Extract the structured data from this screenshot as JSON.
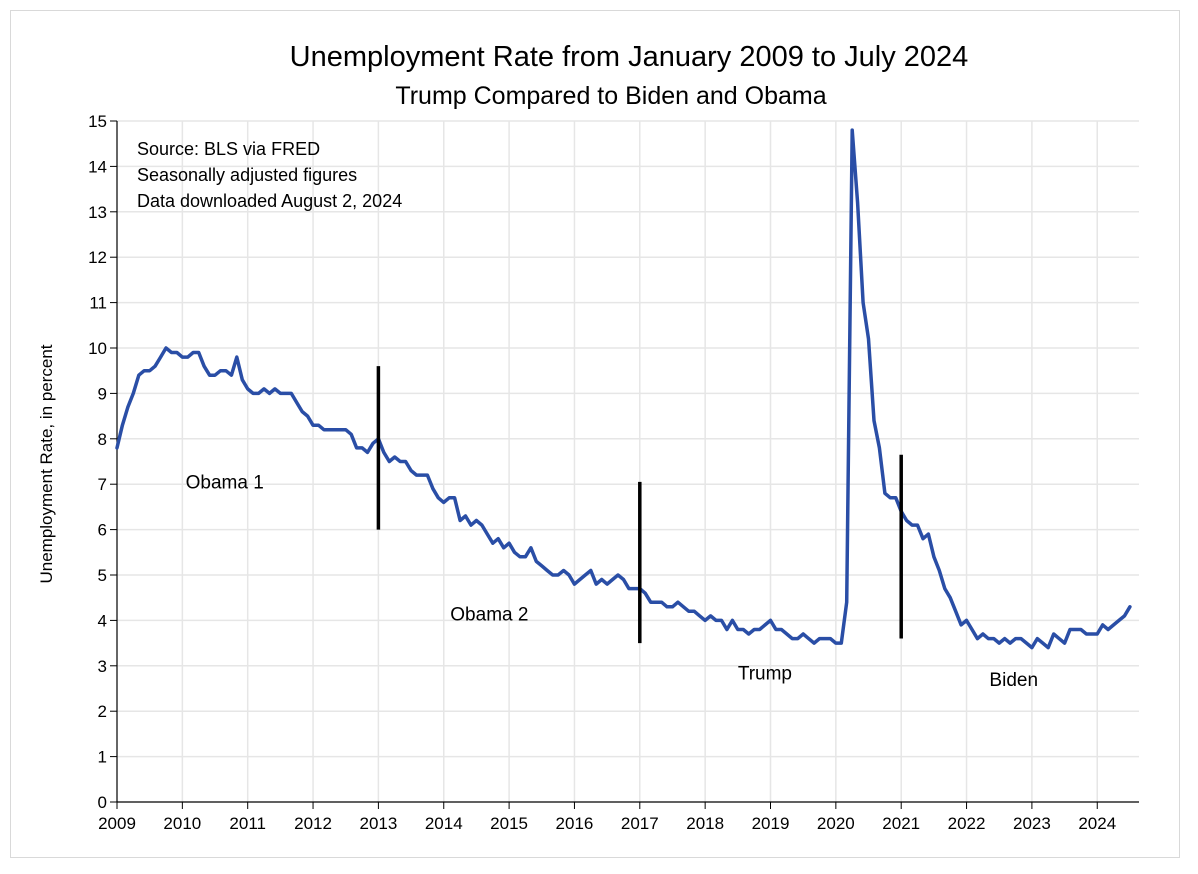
{
  "chart_data": {
    "type": "line",
    "title": "Unemployment Rate from January 2009 to July 2024",
    "subtitle": "Trump Compared to Biden and Obama",
    "ylabel": "Unemployment Rate, in percent",
    "xlabel": "",
    "ylim": [
      0,
      15
    ],
    "xlim": [
      2009,
      2024.6
    ],
    "yticks": [
      "0",
      "1",
      "2",
      "3",
      "4",
      "5",
      "6",
      "7",
      "8",
      "9",
      "10",
      "11",
      "12",
      "13",
      "14",
      "15"
    ],
    "xticks": [
      "2009",
      "2010",
      "2011",
      "2012",
      "2013",
      "2014",
      "2015",
      "2016",
      "2017",
      "2018",
      "2019",
      "2020",
      "2021",
      "2022",
      "2023",
      "2024"
    ],
    "grid": true,
    "line_color": "#2a4ea6",
    "notes": [
      "Source:  BLS via FRED",
      "Seasonally adjusted figures",
      "Data downloaded August 2, 2024"
    ],
    "annotations": [
      {
        "text": "Obama 1",
        "x": 2010.05,
        "y": 6.9
      },
      {
        "text": "Obama 2",
        "x": 2014.1,
        "y": 4.0
      },
      {
        "text": "Trump",
        "x": 2018.5,
        "y": 2.7
      },
      {
        "text": "Biden",
        "x": 2022.35,
        "y": 2.55
      }
    ],
    "term_markers": [
      {
        "x": 2013.0,
        "y_low": 6.0,
        "y_high": 9.6
      },
      {
        "x": 2017.0,
        "y_low": 3.5,
        "y_high": 7.05
      },
      {
        "x": 2021.0,
        "y_low": 3.6,
        "y_high": 7.65
      }
    ],
    "series": [
      {
        "start": 2009,
        "step": 0.083333,
        "values": [
          7.8,
          8.3,
          8.7,
          9.0,
          9.4,
          9.5,
          9.5,
          9.6,
          9.8,
          10.0,
          9.9,
          9.9,
          9.8,
          9.8,
          9.9,
          9.9,
          9.6,
          9.4,
          9.4,
          9.5,
          9.5,
          9.4,
          9.8,
          9.3,
          9.1,
          9.0,
          9.0,
          9.1,
          9.0,
          9.1,
          9.0,
          9.0,
          9.0,
          8.8,
          8.6,
          8.5,
          8.3,
          8.3,
          8.2,
          8.2,
          8.2,
          8.2,
          8.2,
          8.1,
          7.8,
          7.8,
          7.7,
          7.9,
          8.0,
          7.7,
          7.5,
          7.6,
          7.5,
          7.5,
          7.3,
          7.2,
          7.2,
          7.2,
          6.9,
          6.7,
          6.6,
          6.7,
          6.7,
          6.2,
          6.3,
          6.1,
          6.2,
          6.1,
          5.9,
          5.7,
          5.8,
          5.6,
          5.7,
          5.5,
          5.4,
          5.4,
          5.6,
          5.3,
          5.2,
          5.1,
          5.0,
          5.0,
          5.1,
          5.0,
          4.8,
          4.9,
          5.0,
          5.1,
          4.8,
          4.9,
          4.8,
          4.9,
          5.0,
          4.9,
          4.7,
          4.7,
          4.7,
          4.6,
          4.4,
          4.4,
          4.4,
          4.3,
          4.3,
          4.4,
          4.3,
          4.2,
          4.2,
          4.1,
          4.0,
          4.1,
          4.0,
          4.0,
          3.8,
          4.0,
          3.8,
          3.8,
          3.7,
          3.8,
          3.8,
          3.9,
          4.0,
          3.8,
          3.8,
          3.7,
          3.6,
          3.6,
          3.7,
          3.6,
          3.5,
          3.6,
          3.6,
          3.6,
          3.5,
          3.5,
          4.4,
          14.8,
          13.2,
          11.0,
          10.2,
          8.4,
          7.8,
          6.8,
          6.7,
          6.7,
          6.4,
          6.2,
          6.1,
          6.1,
          5.8,
          5.9,
          5.4,
          5.1,
          4.7,
          4.5,
          4.2,
          3.9,
          4.0,
          3.8,
          3.6,
          3.7,
          3.6,
          3.6,
          3.5,
          3.6,
          3.5,
          3.6,
          3.6,
          3.5,
          3.4,
          3.6,
          3.5,
          3.4,
          3.7,
          3.6,
          3.5,
          3.8,
          3.8,
          3.8,
          3.7,
          3.7,
          3.7,
          3.9,
          3.8,
          3.9,
          4.0,
          4.1,
          4.3
        ]
      }
    ]
  }
}
